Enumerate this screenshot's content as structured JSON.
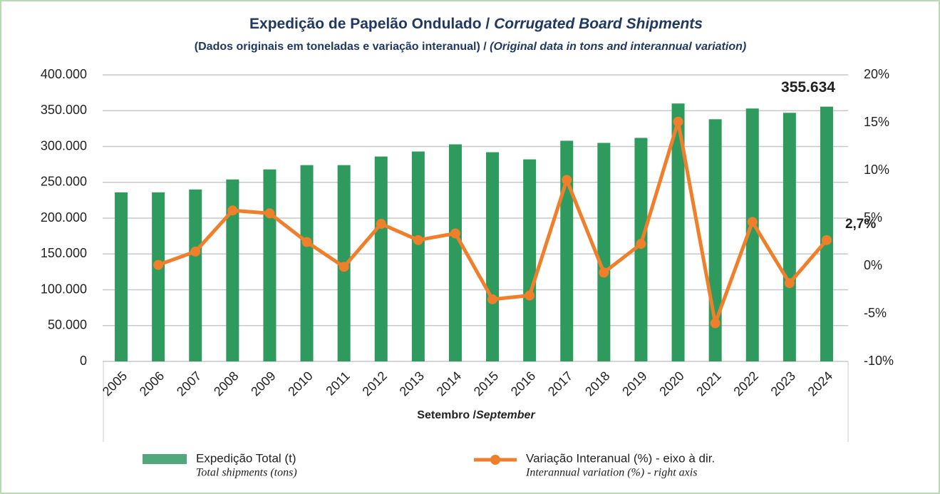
{
  "chart_data": {
    "type": "bar_line",
    "title": "Expedição de Papelão Ondulado /",
    "title_en": "Corrugated Board Shipments",
    "subtitle": "(Dados originais em toneladas e variação interanual) /",
    "subtitle_en": "(Original data in tons and interannual variation)",
    "x_label": "Setembro /",
    "x_label_en": "September",
    "categories": [
      "2005",
      "2006",
      "2007",
      "2008",
      "2009",
      "2010",
      "2011",
      "2012",
      "2013",
      "2014",
      "2015",
      "2016",
      "2017",
      "2018",
      "2019",
      "2020",
      "2021",
      "2022",
      "2023",
      "2024"
    ],
    "series": [
      {
        "name": "Expedição Total (t)",
        "name_en": "Total shipments (tons)",
        "color": "#2e9a5e",
        "legend_color": "#52a87a",
        "kind": "bar",
        "values": [
          236000,
          236000,
          240000,
          254000,
          268000,
          274000,
          274000,
          286000,
          293000,
          303000,
          292000,
          282000,
          308000,
          305000,
          312000,
          360000,
          338000,
          353000,
          347000,
          355634
        ],
        "value_labels": [
          null,
          null,
          null,
          null,
          null,
          null,
          null,
          null,
          null,
          null,
          null,
          null,
          null,
          null,
          null,
          null,
          null,
          null,
          null,
          "355.634"
        ],
        "label_color": "#3f8f2f"
      },
      {
        "name": "Variação Interanual (%) - eixo à dir.",
        "name_en": "Interannual variation (%) - right axis",
        "color": "#f07f2b",
        "kind": "line",
        "axis": "y2",
        "values": [
          null,
          0.1,
          1.5,
          5.8,
          5.5,
          2.5,
          -0.1,
          4.4,
          2.7,
          3.4,
          -3.5,
          -3.1,
          9.0,
          -0.7,
          2.3,
          15.1,
          -6.0,
          4.6,
          -1.8,
          2.7
        ],
        "value_labels": [
          null,
          null,
          null,
          null,
          null,
          null,
          null,
          null,
          null,
          null,
          null,
          null,
          null,
          null,
          null,
          null,
          null,
          null,
          null,
          "2,7%"
        ]
      }
    ],
    "ylim": [
      0,
      400000
    ],
    "yticks": [
      0,
      {
        "value": 50000,
        "label": "50.000"
      },
      {
        "value": 100000,
        "label": "100.000"
      },
      {
        "value": 150000,
        "label": "150.000"
      },
      {
        "value": 200000,
        "label": "200.000"
      },
      {
        "value": 250000,
        "label": "250.000"
      },
      {
        "value": 300000,
        "label": "300.000"
      },
      {
        "value": 350000,
        "label": "350.000"
      },
      {
        "value": 400000,
        "label": "400.000"
      }
    ],
    "y2lim": [
      -10,
      20
    ],
    "y2ticks": [
      {
        "value": -10,
        "label": "-10%"
      },
      {
        "value": -5,
        "label": "-5%"
      },
      {
        "value": 0,
        "label": "0%"
      },
      {
        "value": 5,
        "label": "5%"
      },
      {
        "value": 10,
        "label": "10%"
      },
      {
        "value": 15,
        "label": "15%"
      },
      {
        "value": 20,
        "label": "20%"
      }
    ],
    "grid": true
  }
}
